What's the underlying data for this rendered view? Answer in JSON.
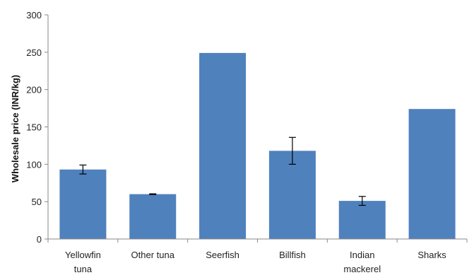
{
  "chart_data": {
    "type": "bar",
    "title": "",
    "xlabel": "",
    "ylabel": "Wholesale price (INR/kg)",
    "ylim": [
      0,
      300
    ],
    "yticks": [
      0,
      50,
      100,
      150,
      200,
      250,
      300
    ],
    "grid": false,
    "bar_color": "#4f81bd",
    "categories": [
      "Yellowfin tuna",
      "Other tuna",
      "Seerfish",
      "Billfish",
      "Indian mackerel",
      "Sharks"
    ],
    "category_lines": [
      [
        "Yellowfin",
        "tuna"
      ],
      [
        "Other tuna"
      ],
      [
        "Seerfish"
      ],
      [
        "Billfish"
      ],
      [
        "Indian",
        "mackerel"
      ],
      [
        "Sharks"
      ]
    ],
    "values": [
      93,
      60,
      249,
      118,
      51,
      174
    ],
    "error": [
      6,
      0.5,
      0,
      18,
      6,
      0
    ]
  }
}
